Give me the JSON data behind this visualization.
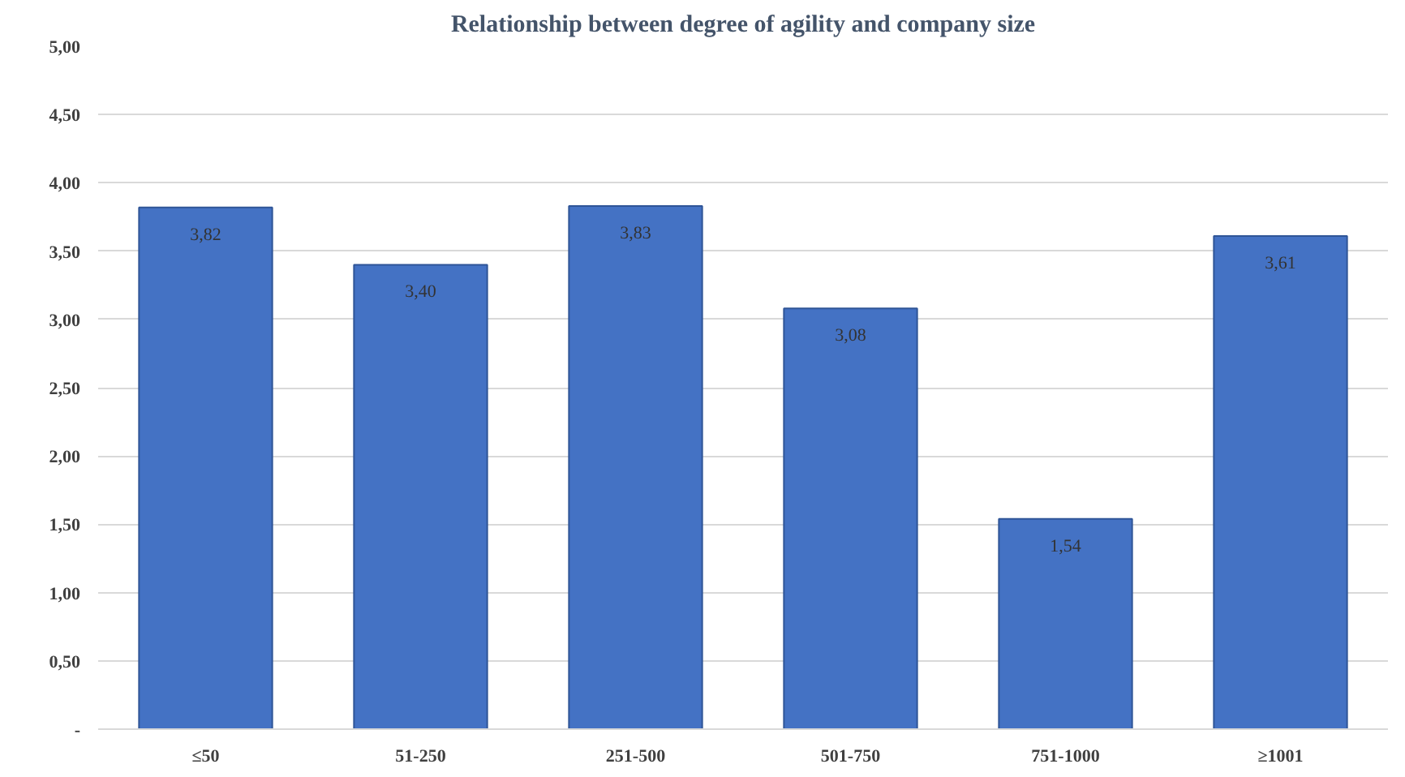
{
  "chart_data": {
    "type": "bar",
    "title": "Relationship between degree of agility and company size",
    "categories": [
      "≤50",
      "51-250",
      "251-500",
      "501-750",
      "751-1000",
      "≥1001"
    ],
    "values": [
      3.82,
      3.4,
      3.83,
      3.08,
      1.54,
      3.61
    ],
    "value_labels": [
      "3,82",
      "3,40",
      "3,83",
      "3,08",
      "1,54",
      "3,61"
    ],
    "color": "#4472c4",
    "ylim": [
      0,
      5
    ],
    "yticks": [
      {
        "value": 0,
        "label": "-"
      },
      {
        "value": 0.5,
        "label": "0,50"
      },
      {
        "value": 1,
        "label": "1,00"
      },
      {
        "value": 1.5,
        "label": "1,50"
      },
      {
        "value": 2,
        "label": "2,00"
      },
      {
        "value": 2.5,
        "label": "2,50"
      },
      {
        "value": 3,
        "label": "3,00"
      },
      {
        "value": 3.5,
        "label": "3,50"
      },
      {
        "value": 4,
        "label": "4,00"
      },
      {
        "value": 4.5,
        "label": "4,50"
      },
      {
        "value": 5,
        "label": "5,00"
      }
    ],
    "grid": "y"
  }
}
